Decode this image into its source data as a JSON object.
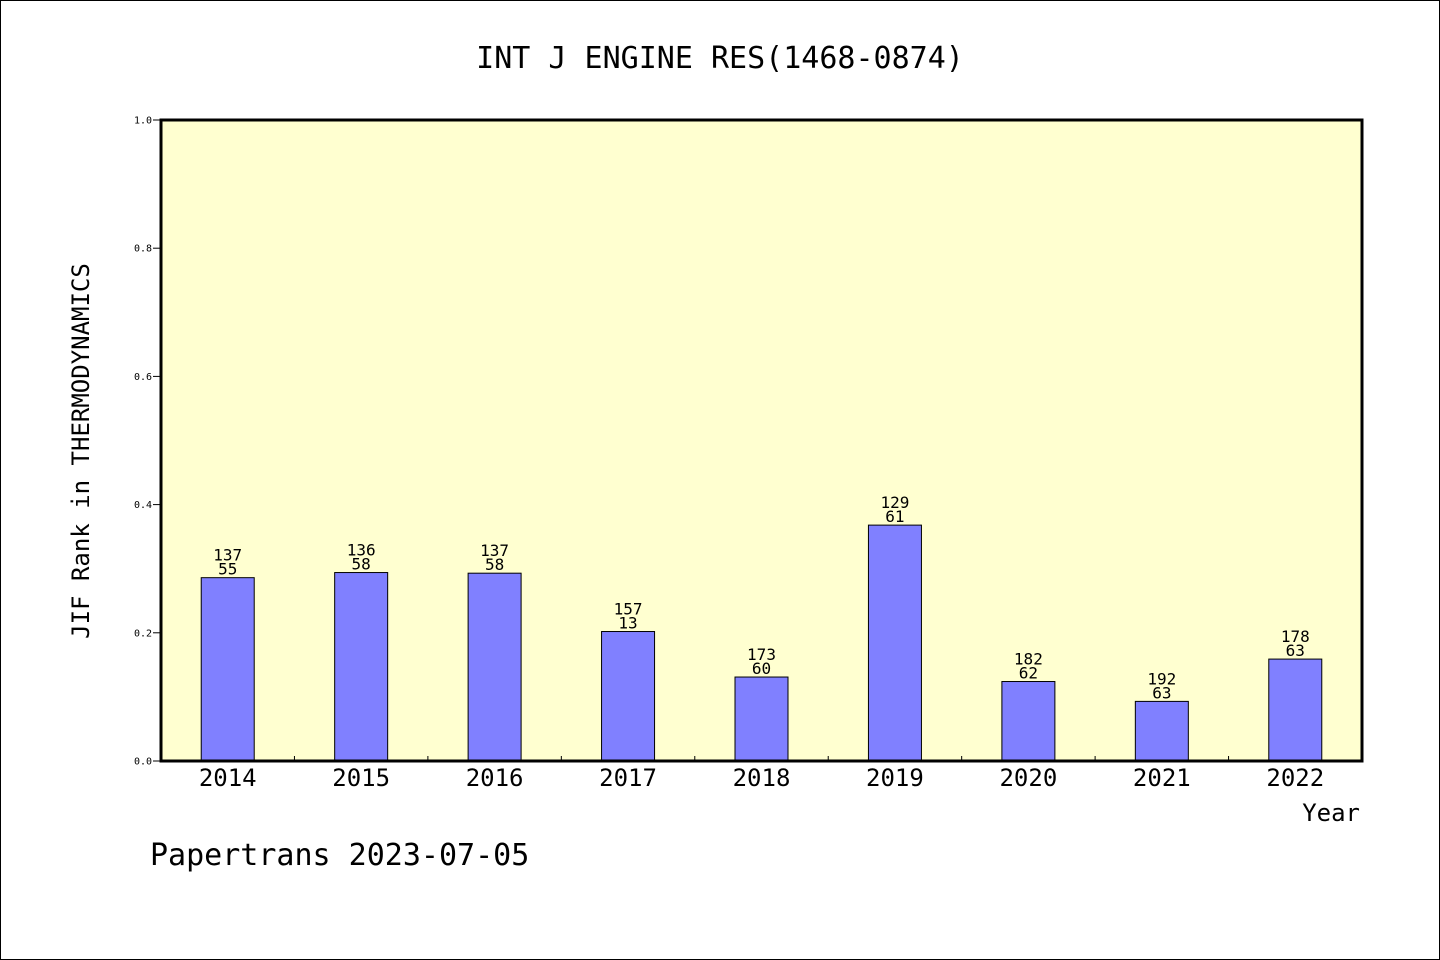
{
  "chart_data": {
    "type": "bar",
    "title": "INT J ENGINE RES(1468-0874)",
    "xlabel": "Year",
    "ylabel": "JIF Rank in THERMODYNAMICS",
    "ylim": [
      0.0,
      1.0
    ],
    "yticks": [
      "0.0",
      "0.2",
      "0.4",
      "0.6",
      "0.8",
      "1.0"
    ],
    "categories": [
      "2014",
      "2015",
      "2016",
      "2017",
      "2018",
      "2019",
      "2020",
      "2021",
      "2022"
    ],
    "values": [
      0.286,
      0.294,
      0.293,
      0.202,
      0.131,
      0.368,
      0.124,
      0.093,
      0.159
    ],
    "labels_top": [
      "137",
      "136",
      "137",
      "157",
      "173",
      "129",
      "182",
      "192",
      "178"
    ],
    "labels_bottom": [
      "55",
      "58",
      "58",
      "13",
      "60",
      "61",
      "62",
      "63",
      "63"
    ],
    "grid": false,
    "colors": {
      "plot_background": "#ffffd0",
      "bar_fill": "#8080ff",
      "bar_stroke": "#000000"
    }
  },
  "footer": "Papertrans 2023-07-05"
}
